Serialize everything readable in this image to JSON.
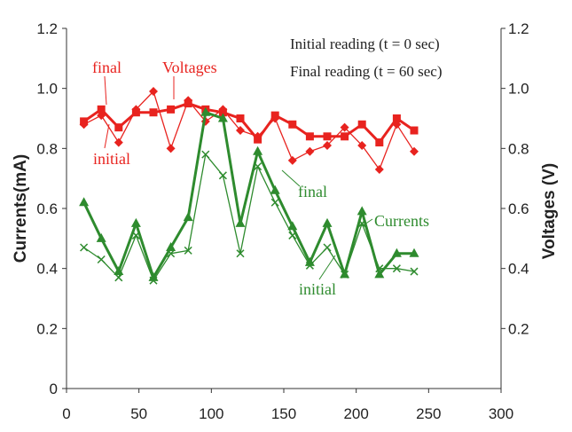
{
  "chart_data": {
    "type": "line",
    "xlim": [
      0,
      300
    ],
    "x_ticks": [
      "0",
      "50",
      "100",
      "150",
      "200",
      "250",
      "300"
    ],
    "ylabel_left": "Currents(mA)",
    "ylim_left": [
      0,
      1.2
    ],
    "yticks_left": [
      "0",
      "0.2",
      "0.4",
      "0.6",
      "0.8",
      "1.0",
      "1.2"
    ],
    "ylabel_right": "Voltages (V)",
    "ylim_right": [
      0,
      1.2
    ],
    "yticks_right": [
      "0.2",
      "0.4",
      "0.6",
      "0.8",
      "1.0",
      "1.2"
    ],
    "grid": false,
    "legend_notes": [
      "Initial reading (t = 0 sec)",
      "Final reading (t = 60 sec)"
    ],
    "x": [
      12,
      24,
      36,
      48,
      60,
      72,
      84,
      96,
      108,
      120,
      132,
      144,
      156,
      168,
      180,
      192,
      204,
      216,
      228,
      240
    ],
    "series": [
      {
        "key": "volt_final",
        "axis": "right",
        "color": "#e8231f",
        "marker": "square",
        "width": 3,
        "values": [
          0.89,
          0.93,
          0.87,
          0.92,
          0.92,
          0.93,
          0.95,
          0.93,
          0.92,
          0.9,
          0.83,
          0.91,
          0.88,
          0.84,
          0.84,
          0.84,
          0.88,
          0.82,
          0.9,
          0.86
        ]
      },
      {
        "key": "volt_initial",
        "axis": "right",
        "color": "#e8231f",
        "marker": "diamond",
        "width": 1.3,
        "values": [
          0.88,
          0.91,
          0.82,
          0.93,
          0.99,
          0.8,
          0.96,
          0.89,
          0.93,
          0.86,
          0.84,
          0.9,
          0.76,
          0.79,
          0.81,
          0.87,
          0.81,
          0.73,
          0.88,
          0.79
        ]
      },
      {
        "key": "curr_final",
        "axis": "left",
        "color": "#2e8b2e",
        "marker": "triangle",
        "width": 3,
        "values": [
          0.62,
          0.5,
          0.39,
          0.55,
          0.37,
          0.47,
          0.57,
          0.92,
          0.9,
          0.55,
          0.79,
          0.66,
          0.54,
          0.42,
          0.55,
          0.38,
          0.59,
          0.38,
          0.45,
          0.45
        ]
      },
      {
        "key": "curr_initial",
        "axis": "left",
        "color": "#2e8b2e",
        "marker": "cross",
        "width": 1.3,
        "values": [
          0.47,
          0.43,
          0.37,
          0.51,
          0.36,
          0.45,
          0.46,
          0.78,
          0.71,
          0.45,
          0.74,
          0.62,
          0.51,
          0.41,
          0.47,
          0.38,
          0.55,
          0.4,
          0.4,
          0.39
        ]
      }
    ],
    "annotations": {
      "volt_final": "final",
      "volt_initial": "initial",
      "voltages": "Voltages",
      "curr_final": "final",
      "currents": "Currents",
      "curr_initial": "initial"
    }
  }
}
